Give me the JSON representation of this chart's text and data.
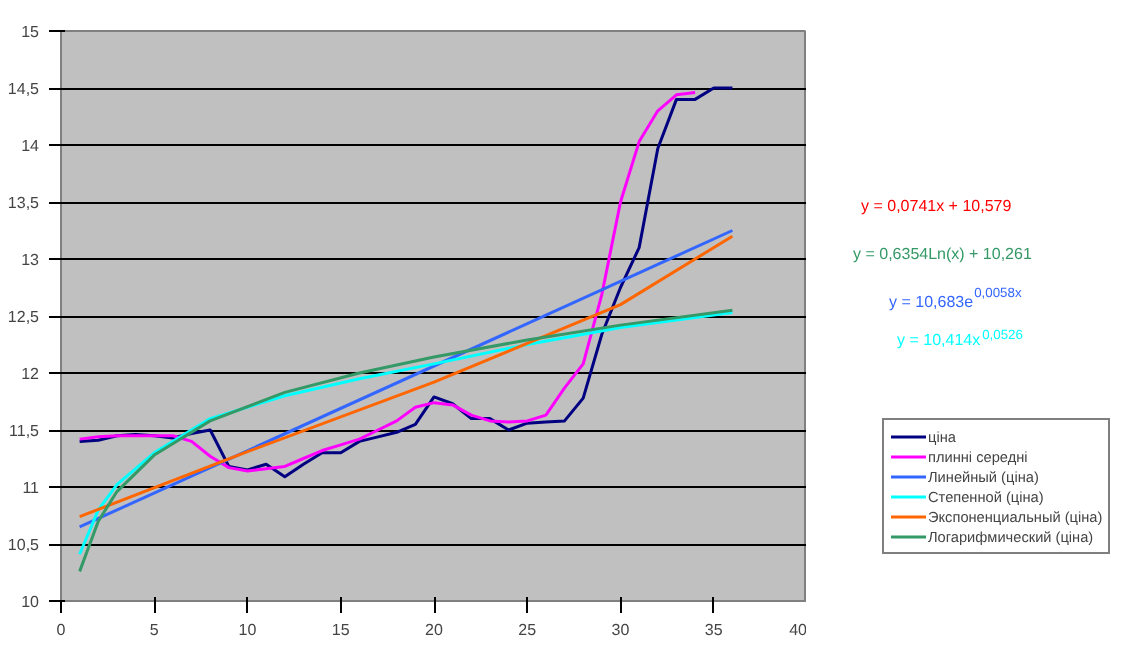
{
  "chart_data": {
    "type": "line",
    "xlim": [
      0,
      40
    ],
    "ylim": [
      10,
      15
    ],
    "xticks": [
      0,
      5,
      10,
      15,
      20,
      25,
      30,
      35,
      40
    ],
    "yticks": [
      10,
      {
        "value": 10.5,
        "label": "10,5"
      },
      11,
      {
        "value": 11.5,
        "label": "11,5"
      },
      12,
      {
        "value": 12.5,
        "label": "12,5"
      },
      13,
      {
        "value": 13.5,
        "label": "13,5"
      },
      14,
      {
        "value": 14.5,
        "label": "14,5"
      },
      15
    ],
    "grid": "y",
    "legend": "right",
    "marker": "none",
    "line_style": "solid",
    "annotations": [
      "y = 0,0741x + 10,579",
      "y = 0,6354Ln(x) + 10,261",
      "y = 10,683e$^{0,0058x}$",
      "y = 10,414x$^{0,0526}$"
    ],
    "series": [
      {
        "name": "ціна",
        "color": "#000080",
        "x": [
          1,
          2,
          3,
          4,
          5,
          6,
          7,
          8,
          9,
          10,
          11,
          12,
          13,
          14,
          15,
          16,
          17,
          18,
          19,
          20,
          21,
          22,
          23,
          24,
          25,
          26,
          27,
          28,
          29,
          30,
          31,
          32,
          33,
          34,
          35,
          36
        ],
        "values": [
          11.4,
          11.41,
          11.45,
          11.46,
          11.45,
          11.43,
          11.47,
          11.5,
          11.18,
          11.15,
          11.2,
          11.09,
          11.2,
          11.3,
          11.3,
          11.4,
          11.44,
          11.48,
          11.55,
          11.79,
          11.73,
          11.6,
          11.6,
          11.5,
          11.56,
          11.57,
          11.58,
          11.78,
          12.34,
          12.75,
          13.1,
          13.97,
          14.4,
          14.4,
          14.5,
          14.5
        ]
      },
      {
        "name": "плинні середні",
        "color": "#ff00ff",
        "x": [
          1,
          2,
          3,
          4,
          5,
          6,
          7,
          8,
          9,
          10,
          11,
          12,
          13,
          14,
          15,
          16,
          17,
          18,
          19,
          20,
          21,
          22,
          23,
          24,
          25,
          26,
          27,
          28,
          29,
          30,
          31,
          32,
          33,
          34
        ],
        "values": [
          11.42,
          11.44,
          11.45,
          11.45,
          11.45,
          11.45,
          11.4,
          11.27,
          11.17,
          11.14,
          11.16,
          11.18,
          11.25,
          11.32,
          11.37,
          11.42,
          11.5,
          11.58,
          11.7,
          11.74,
          11.72,
          11.63,
          11.58,
          11.57,
          11.58,
          11.63,
          11.87,
          12.08,
          12.69,
          13.5,
          14.03,
          14.3,
          14.44,
          14.46
        ]
      },
      {
        "name": "Линейный (ціна)",
        "color": "#3366ff",
        "x": [
          1,
          36
        ],
        "values": [
          10.65,
          13.25
        ]
      },
      {
        "name": "Степенной (ціна)",
        "color": "#00ffff",
        "x": [
          1,
          2,
          3,
          5,
          8,
          12,
          16,
          20,
          25,
          30,
          36
        ],
        "values": [
          10.41,
          10.8,
          11.02,
          11.3,
          11.6,
          11.8,
          11.95,
          12.08,
          12.25,
          12.4,
          12.53
        ]
      },
      {
        "name": "Экспоненциальный (ціна)",
        "color": "#ff6600",
        "x": [
          1,
          10,
          20,
          30,
          36
        ],
        "values": [
          10.74,
          11.31,
          11.92,
          12.6,
          13.2
        ]
      },
      {
        "name": "Логарифмический (ціна)",
        "color": "#339966",
        "x": [
          1,
          2,
          3,
          5,
          8,
          12,
          16,
          20,
          25,
          30,
          36
        ],
        "values": [
          10.26,
          10.7,
          10.96,
          11.28,
          11.58,
          11.83,
          12.0,
          12.14,
          12.29,
          12.42,
          12.55
        ]
      }
    ]
  }
}
